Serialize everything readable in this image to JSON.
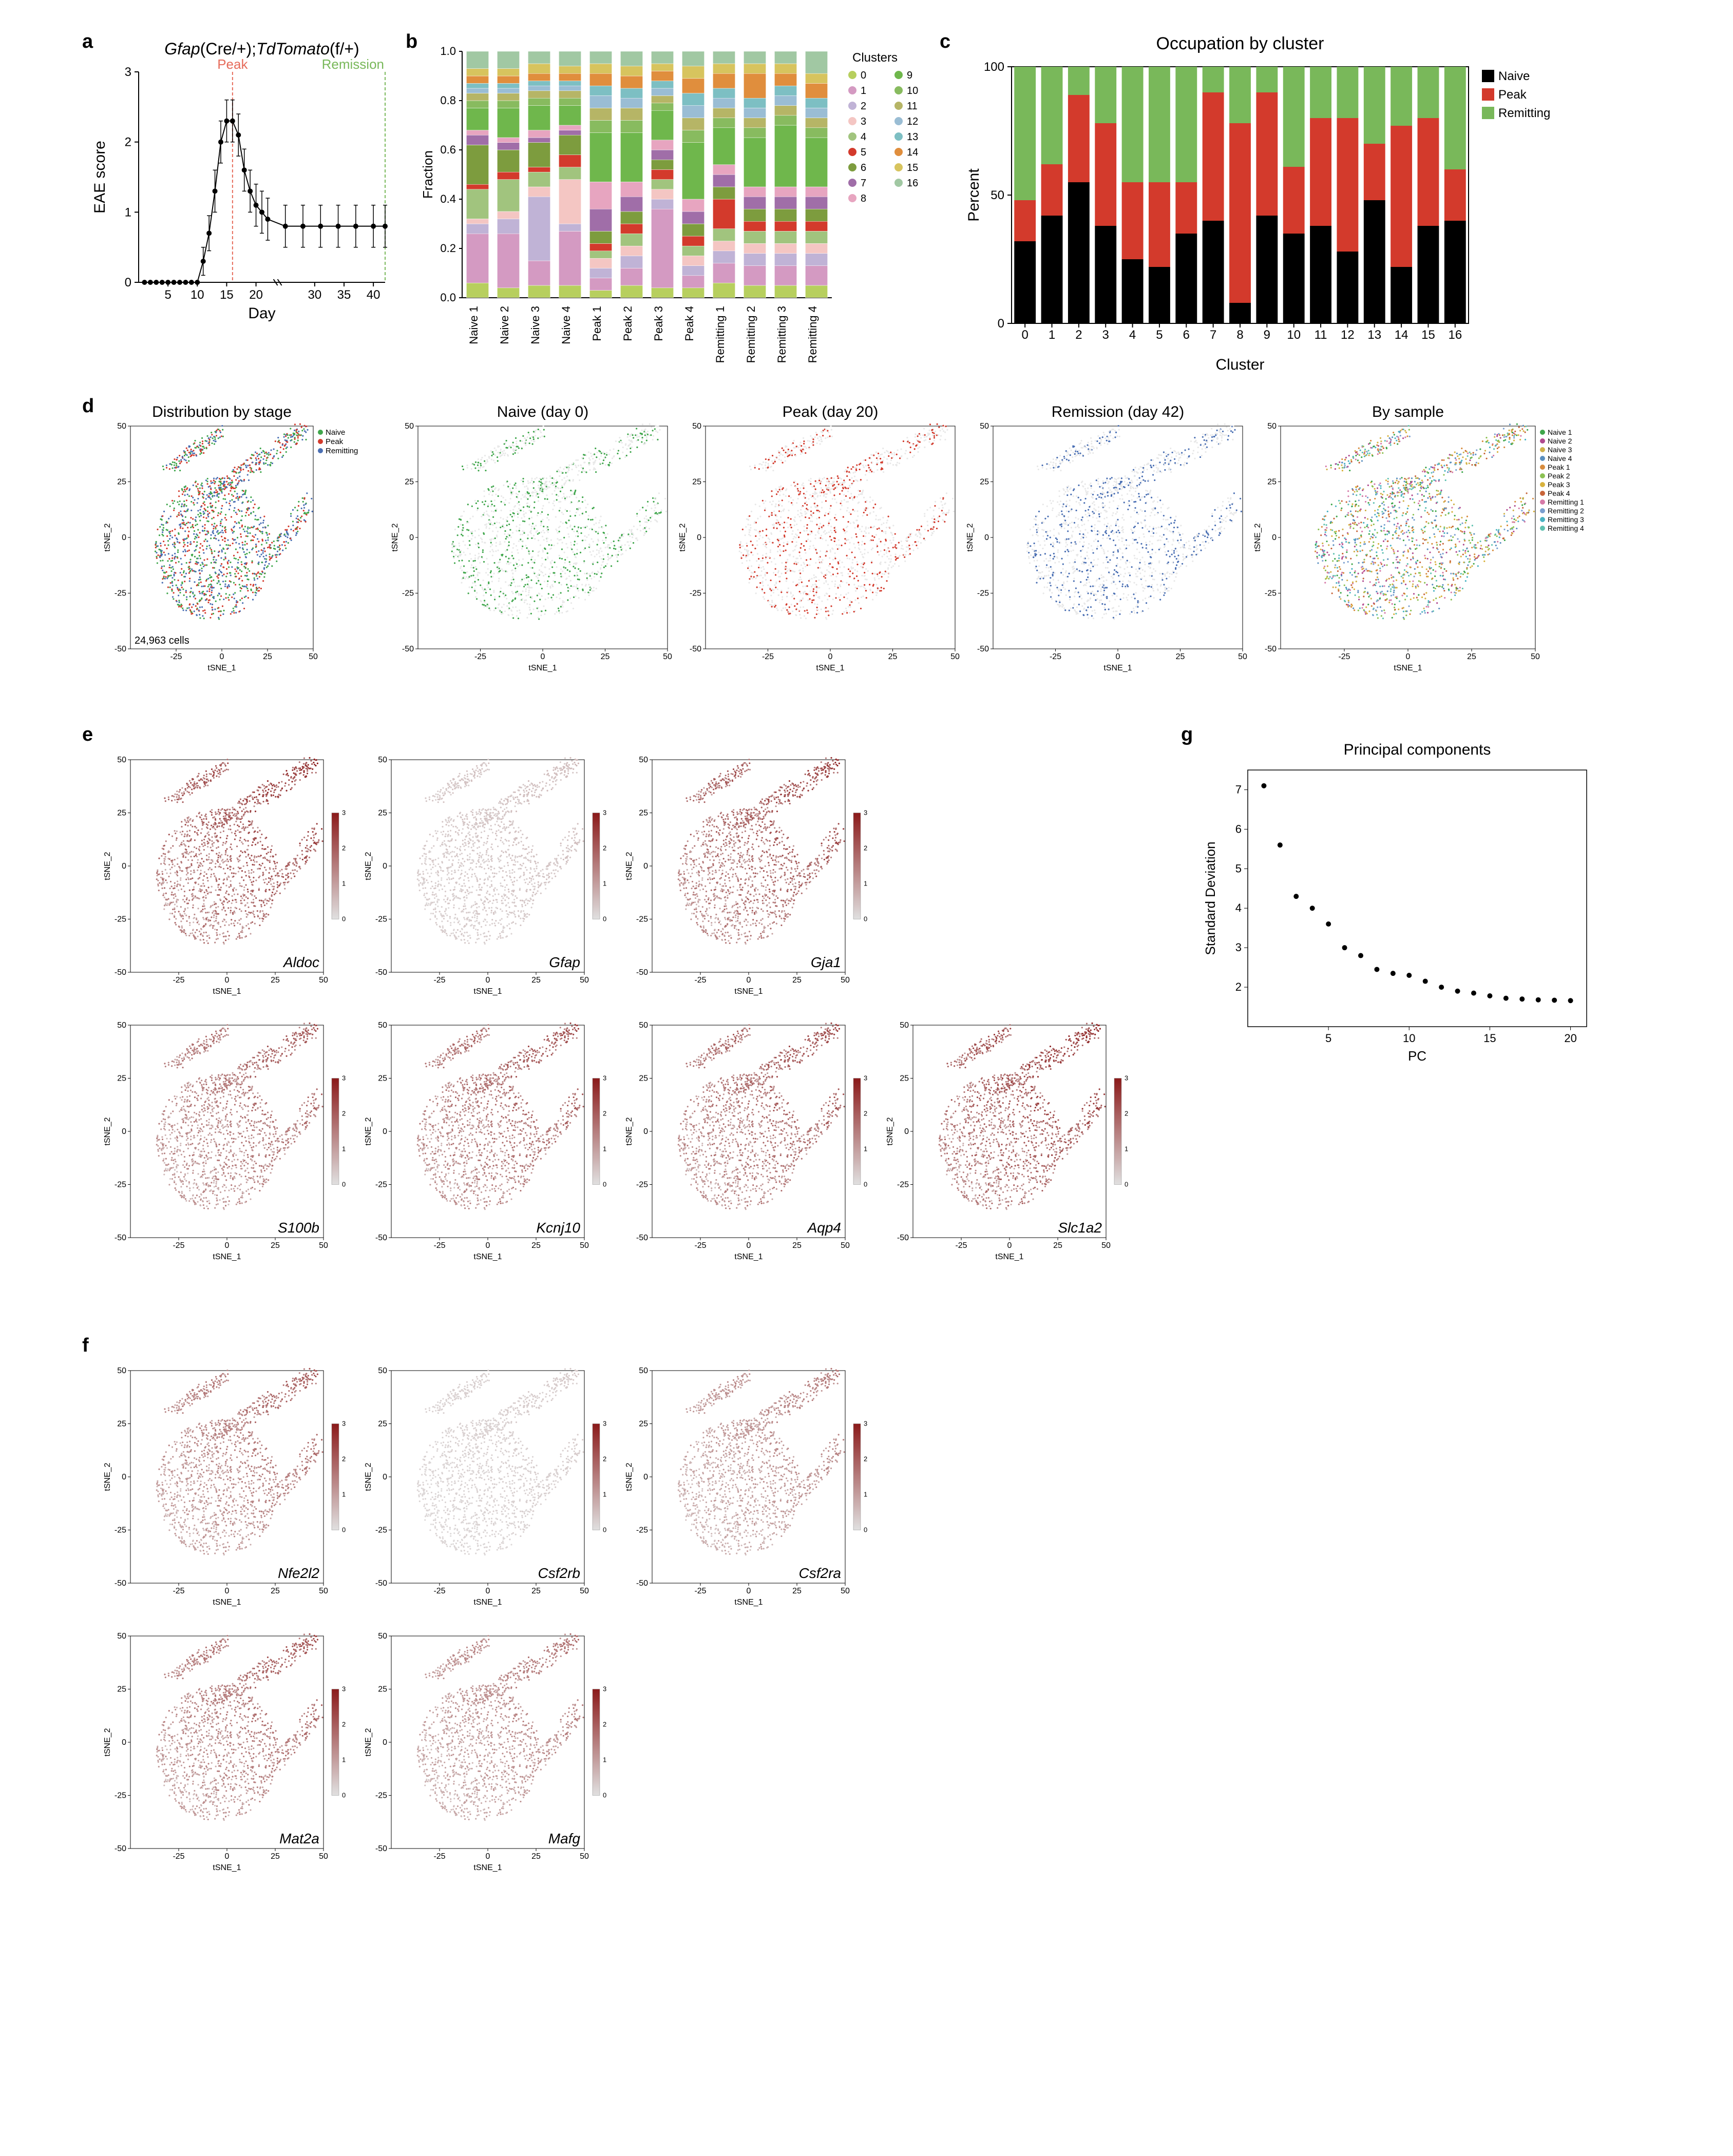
{
  "panel_a": {
    "title_html": "Gfap(Cre/+);TdTomato(f/+)",
    "title_fontsize": 32,
    "xlabel": "Day",
    "ylabel": "EAE score",
    "label_fontsize": 30,
    "xlim": [
      0,
      42
    ],
    "ylim": [
      0,
      3
    ],
    "xticks": [
      5,
      10,
      15,
      20,
      30,
      35,
      40
    ],
    "yticks": [
      0,
      1,
      2,
      3
    ],
    "peak_label": "Peak",
    "peak_color": "#e66b5a",
    "peak_x": 16,
    "rem_label": "Remission",
    "rem_color": "#79b85a",
    "rem_x": 42,
    "points": [
      {
        "x": 1,
        "y": 0,
        "e": 0
      },
      {
        "x": 2,
        "y": 0,
        "e": 0
      },
      {
        "x": 3,
        "y": 0,
        "e": 0
      },
      {
        "x": 4,
        "y": 0,
        "e": 0
      },
      {
        "x": 5,
        "y": 0,
        "e": 0
      },
      {
        "x": 6,
        "y": 0,
        "e": 0
      },
      {
        "x": 7,
        "y": 0,
        "e": 0
      },
      {
        "x": 8,
        "y": 0,
        "e": 0
      },
      {
        "x": 9,
        "y": 0,
        "e": 0
      },
      {
        "x": 10,
        "y": 0,
        "e": 0
      },
      {
        "x": 11,
        "y": 0.3,
        "e": 0.2
      },
      {
        "x": 12,
        "y": 0.7,
        "e": 0.25
      },
      {
        "x": 13,
        "y": 1.3,
        "e": 0.3
      },
      {
        "x": 14,
        "y": 2.0,
        "e": 0.3
      },
      {
        "x": 15,
        "y": 2.3,
        "e": 0.3
      },
      {
        "x": 16,
        "y": 2.3,
        "e": 0.3
      },
      {
        "x": 17,
        "y": 2.1,
        "e": 0.3
      },
      {
        "x": 18,
        "y": 1.6,
        "e": 0.3
      },
      {
        "x": 19,
        "y": 1.3,
        "e": 0.3
      },
      {
        "x": 20,
        "y": 1.1,
        "e": 0.3
      },
      {
        "x": 21,
        "y": 1.0,
        "e": 0.3
      },
      {
        "x": 22,
        "y": 0.9,
        "e": 0.3
      },
      {
        "x": 25,
        "y": 0.8,
        "e": 0.3
      },
      {
        "x": 28,
        "y": 0.8,
        "e": 0.3
      },
      {
        "x": 31,
        "y": 0.8,
        "e": 0.3
      },
      {
        "x": 34,
        "y": 0.8,
        "e": 0.3
      },
      {
        "x": 37,
        "y": 0.8,
        "e": 0.3
      },
      {
        "x": 40,
        "y": 0.8,
        "e": 0.3
      },
      {
        "x": 42,
        "y": 0.8,
        "e": 0.3
      }
    ],
    "line_color": "#000000",
    "axis_fontsize": 24
  },
  "panel_b": {
    "ylabel": "Fraction",
    "label_fontsize": 26,
    "yticks": [
      0.0,
      0.2,
      0.4,
      0.6,
      0.8,
      1.0
    ],
    "legend_title": "Clusters",
    "cluster_colors": {
      "0": "#b7cf5e",
      "1": "#d49ac2",
      "2": "#c0b3d6",
      "3": "#f4c6c3",
      "4": "#a1c47e",
      "5": "#d33a2c",
      "6": "#7d9c3e",
      "7": "#a06ea8",
      "8": "#e7a5c0",
      "9": "#6fb74c",
      "10": "#88bb5f",
      "11": "#b6b566",
      "12": "#9abdd4",
      "13": "#7dbfc3",
      "14": "#e08e3d",
      "15": "#d7c45e",
      "16": "#a1c8a3"
    },
    "samples": [
      "Naive 1",
      "Naive 2",
      "Naive 3",
      "Naive 4",
      "Peak 1",
      "Peak 2",
      "Peak 3",
      "Peak 4",
      "Remitting 1",
      "Remitting 2",
      "Remitting 3",
      "Remitting 4"
    ],
    "stacks": [
      [
        0.06,
        0.2,
        0.04,
        0.02,
        0.12,
        0.02,
        0.16,
        0.04,
        0.02,
        0.09,
        0.03,
        0.03,
        0.02,
        0.02,
        0.03,
        0.03,
        0.07
      ],
      [
        0.04,
        0.22,
        0.06,
        0.03,
        0.13,
        0.03,
        0.09,
        0.03,
        0.02,
        0.12,
        0.03,
        0.03,
        0.02,
        0.02,
        0.03,
        0.03,
        0.07
      ],
      [
        0.05,
        0.1,
        0.26,
        0.04,
        0.06,
        0.02,
        0.1,
        0.02,
        0.03,
        0.1,
        0.03,
        0.03,
        0.02,
        0.02,
        0.03,
        0.04,
        0.05
      ],
      [
        0.05,
        0.22,
        0.03,
        0.18,
        0.05,
        0.05,
        0.08,
        0.02,
        0.02,
        0.08,
        0.03,
        0.03,
        0.02,
        0.02,
        0.03,
        0.03,
        0.06
      ],
      [
        0.03,
        0.05,
        0.04,
        0.04,
        0.03,
        0.03,
        0.05,
        0.09,
        0.11,
        0.2,
        0.05,
        0.05,
        0.05,
        0.04,
        0.05,
        0.04,
        0.05
      ],
      [
        0.05,
        0.07,
        0.05,
        0.04,
        0.05,
        0.04,
        0.05,
        0.06,
        0.06,
        0.2,
        0.05,
        0.05,
        0.04,
        0.04,
        0.05,
        0.04,
        0.06
      ],
      [
        0.04,
        0.32,
        0.04,
        0.04,
        0.04,
        0.04,
        0.04,
        0.04,
        0.04,
        0.12,
        0.03,
        0.03,
        0.03,
        0.03,
        0.04,
        0.03,
        0.05
      ],
      [
        0.04,
        0.05,
        0.04,
        0.04,
        0.04,
        0.04,
        0.05,
        0.05,
        0.05,
        0.23,
        0.05,
        0.05,
        0.05,
        0.05,
        0.06,
        0.05,
        0.06
      ],
      [
        0.06,
        0.08,
        0.05,
        0.04,
        0.05,
        0.12,
        0.05,
        0.05,
        0.04,
        0.15,
        0.04,
        0.04,
        0.04,
        0.04,
        0.06,
        0.04,
        0.05
      ],
      [
        0.05,
        0.08,
        0.05,
        0.04,
        0.05,
        0.04,
        0.05,
        0.05,
        0.04,
        0.2,
        0.04,
        0.04,
        0.04,
        0.04,
        0.1,
        0.04,
        0.05
      ],
      [
        0.05,
        0.08,
        0.05,
        0.04,
        0.05,
        0.04,
        0.05,
        0.05,
        0.04,
        0.25,
        0.04,
        0.04,
        0.04,
        0.04,
        0.05,
        0.04,
        0.05
      ],
      [
        0.05,
        0.08,
        0.05,
        0.04,
        0.05,
        0.04,
        0.05,
        0.05,
        0.04,
        0.2,
        0.04,
        0.04,
        0.04,
        0.04,
        0.06,
        0.04,
        0.09
      ]
    ],
    "tick_fontsize": 22
  },
  "panel_c": {
    "title": "Occupation by cluster",
    "title_fontsize": 34,
    "xlabel": "Cluster",
    "ylabel": "Percent",
    "label_fontsize": 30,
    "yticks": [
      0,
      50,
      100
    ],
    "legend": [
      {
        "label": "Naive",
        "color": "#000000"
      },
      {
        "label": "Peak",
        "color": "#d33a2c"
      },
      {
        "label": "Remitting",
        "color": "#79b85a"
      }
    ],
    "clusters": [
      0,
      1,
      2,
      3,
      4,
      5,
      6,
      7,
      8,
      9,
      10,
      11,
      12,
      13,
      14,
      15,
      16
    ],
    "stacks": [
      {
        "n": 32,
        "p": 16,
        "r": 52
      },
      {
        "n": 42,
        "p": 20,
        "r": 38
      },
      {
        "n": 55,
        "p": 34,
        "r": 11
      },
      {
        "n": 38,
        "p": 40,
        "r": 22
      },
      {
        "n": 25,
        "p": 30,
        "r": 45
      },
      {
        "n": 22,
        "p": 33,
        "r": 45
      },
      {
        "n": 35,
        "p": 20,
        "r": 45
      },
      {
        "n": 40,
        "p": 50,
        "r": 10
      },
      {
        "n": 8,
        "p": 70,
        "r": 22
      },
      {
        "n": 42,
        "p": 48,
        "r": 10
      },
      {
        "n": 35,
        "p": 26,
        "r": 39
      },
      {
        "n": 38,
        "p": 42,
        "r": 20
      },
      {
        "n": 28,
        "p": 52,
        "r": 20
      },
      {
        "n": 48,
        "p": 22,
        "r": 30
      },
      {
        "n": 22,
        "p": 55,
        "r": 23
      },
      {
        "n": 38,
        "p": 42,
        "r": 20
      },
      {
        "n": 40,
        "p": 20,
        "r": 40
      }
    ],
    "tick_fontsize": 24
  },
  "panel_d": {
    "titles": [
      "Distribution by stage",
      "Naive (day 0)",
      "Peak (day 20)",
      "Remission (day 42)",
      "By sample"
    ],
    "title_fontsize": 30,
    "xlabel": "tSNE_1",
    "ylabel": "tSNE_2",
    "axis_fontsize": 16,
    "xlim": [
      -50,
      50
    ],
    "ylim": [
      -50,
      50
    ],
    "xticks": [
      -25,
      0,
      25,
      50
    ],
    "yticks": [
      -50,
      -25,
      0,
      25,
      50
    ],
    "cell_count_label": "24,963 cells",
    "stage_legend": [
      {
        "label": "Naive",
        "color": "#3fa64b"
      },
      {
        "label": "Peak",
        "color": "#d33a2c"
      },
      {
        "label": "Remitting",
        "color": "#4a6fb3"
      }
    ],
    "sample_legend": [
      {
        "label": "Naive 1",
        "color": "#3fa64b"
      },
      {
        "label": "Naive 2",
        "color": "#b04a8f"
      },
      {
        "label": "Naive 3",
        "color": "#d0b04a"
      },
      {
        "label": "Naive 4",
        "color": "#5a8fbf"
      },
      {
        "label": "Peak 1",
        "color": "#d78b3d"
      },
      {
        "label": "Peak 2",
        "color": "#8cc153"
      },
      {
        "label": "Peak 3",
        "color": "#d8b23d"
      },
      {
        "label": "Peak 4",
        "color": "#c8653a"
      },
      {
        "label": "Remitting 1",
        "color": "#d67aa8"
      },
      {
        "label": "Remitting 2",
        "color": "#7a9fd0"
      },
      {
        "label": "Remitting 3",
        "color": "#4ab3c3"
      },
      {
        "label": "Remitting 4",
        "color": "#5fc1b0"
      }
    ]
  },
  "panel_e": {
    "genes": [
      "Aldoc",
      "Gfap",
      "Gja1",
      "S100b",
      "Kcnj10",
      "Aqp4",
      "Slc1a2"
    ],
    "color_low": "#e0e0e0",
    "color_high": "#8b1a1a",
    "scale_min": 0,
    "scale_max": 3,
    "xlabel": "tSNE_1",
    "ylabel": "tSNE_2",
    "axis_fontsize": 16,
    "xlim": [
      -50,
      50
    ],
    "ylim": [
      -50,
      50
    ],
    "xticks": [
      -25,
      0,
      25,
      50
    ],
    "yticks": [
      -50,
      -25,
      0,
      25,
      50
    ],
    "intensity": {
      "Aldoc": 0.95,
      "Gfap": 0.2,
      "Gja1": 0.9,
      "S100b": 0.75,
      "Kcnj10": 0.8,
      "Aqp4": 0.82,
      "Slc1a2": 0.97
    }
  },
  "panel_f": {
    "genes": [
      "Nfe2l2",
      "Csf2rb",
      "Csf2ra",
      "Mat2a",
      "Mafg"
    ],
    "color_low": "#e0e0e0",
    "color_high": "#8b1a1a",
    "scale_min": 0,
    "scale_max": 3,
    "xlabel": "tSNE_1",
    "ylabel": "tSNE_2",
    "axis_fontsize": 16,
    "xlim": [
      -50,
      50
    ],
    "ylim": [
      -50,
      50
    ],
    "xticks": [
      -25,
      0,
      25,
      50
    ],
    "yticks": [
      -50,
      -25,
      0,
      25,
      50
    ],
    "intensity": {
      "Nfe2l2": 0.7,
      "Csf2rb": 0.12,
      "Csf2ra": 0.55,
      "Mat2a": 0.75,
      "Mafg": 0.6
    }
  },
  "panel_g": {
    "title": "Principal components",
    "title_fontsize": 30,
    "xlabel": "PC",
    "ylabel": "Standard Deviation",
    "label_fontsize": 26,
    "xlim": [
      0,
      21
    ],
    "ylim": [
      1,
      7.5
    ],
    "xticks": [
      5,
      10,
      15,
      20
    ],
    "yticks": [
      2,
      3,
      4,
      5,
      6,
      7
    ],
    "points": [
      7.1,
      5.6,
      4.3,
      4.0,
      3.6,
      3.0,
      2.8,
      2.45,
      2.35,
      2.3,
      2.15,
      2.0,
      1.9,
      1.85,
      1.78,
      1.72,
      1.7,
      1.68,
      1.67,
      1.66
    ],
    "point_color": "#000000"
  },
  "layout": {
    "panel_label_fontsize": 38,
    "bg": "#ffffff"
  }
}
